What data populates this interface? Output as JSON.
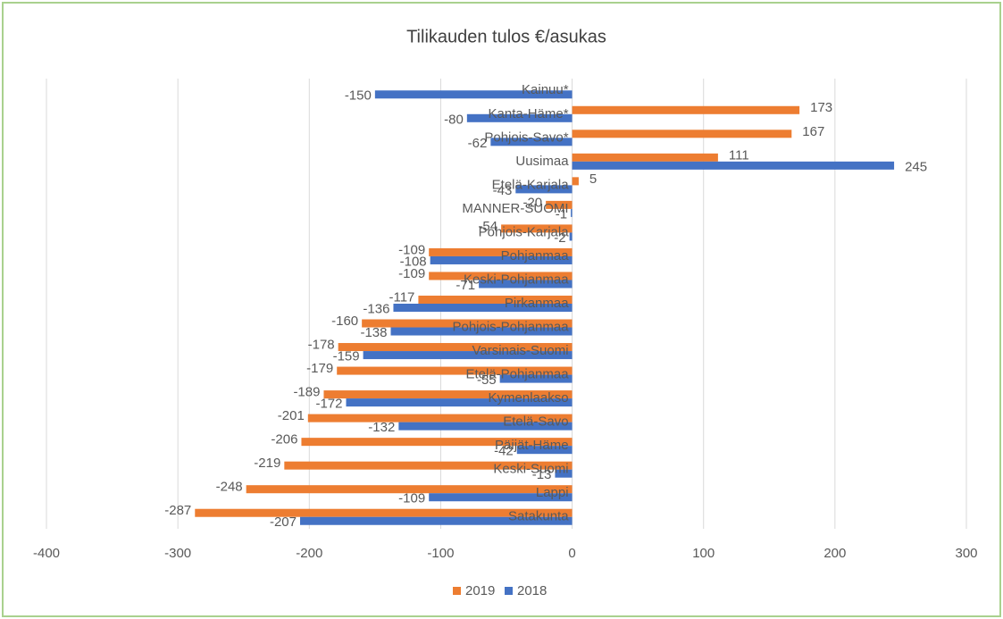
{
  "chart_data": {
    "type": "bar",
    "orientation": "horizontal",
    "title": "Tilikauden tulos €/asukas",
    "categories": [
      "Kainuu*",
      "Kanta-Häme*",
      "Pohjois-Savo*",
      "Uusimaa",
      "Etelä-Karjala",
      "MANNER-SUOMI",
      "Pohjois-Karjala",
      "Pohjanmaa",
      "Keski-Pohjanmaa",
      "Pirkanmaa",
      "Pohjois-Pohjanmaa",
      "Varsinais-Suomi",
      "Etelä-Pohjanmaa",
      "Kymenlaakso",
      "Etelä-Savo",
      "Päijät-Häme",
      "Keski-Suomi",
      "Lappi",
      "Satakunta"
    ],
    "series": [
      {
        "name": "2019",
        "color": "#ed7d31",
        "values": [
          null,
          173,
          167,
          111,
          5,
          -20,
          -54,
          -109,
          -109,
          -117,
          -160,
          -178,
          -179,
          -189,
          -201,
          -206,
          -219,
          -248,
          -287
        ]
      },
      {
        "name": "2018",
        "color": "#4472c4",
        "values": [
          -150,
          -80,
          -62,
          245,
          -43,
          -1,
          -2,
          -108,
          -71,
          -136,
          -138,
          -159,
          -55,
          -172,
          -132,
          -42,
          -13,
          -109,
          -207
        ]
      }
    ],
    "xlim": [
      -400,
      300
    ],
    "xticks": [
      -400,
      -300,
      -200,
      -100,
      0,
      100,
      200,
      300
    ],
    "grid": true,
    "legend": "bottom"
  }
}
